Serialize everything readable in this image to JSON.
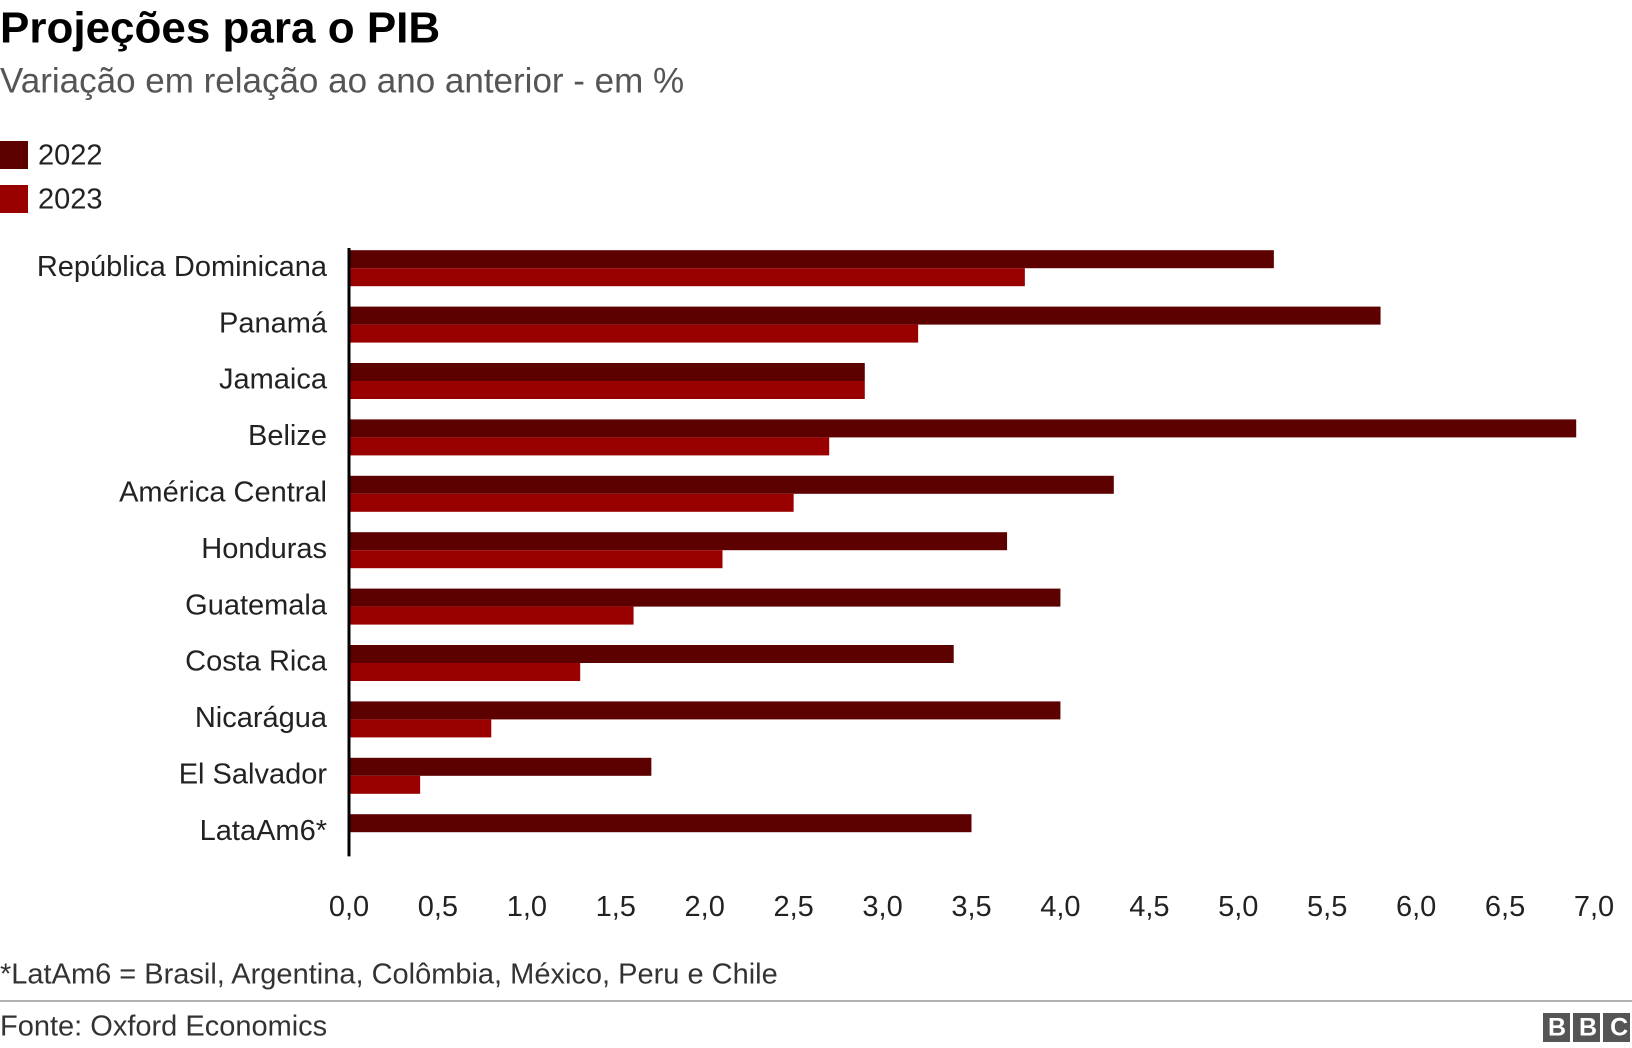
{
  "chart_data": {
    "type": "hbar",
    "title": "Projeções para o PIB",
    "subtitle": "Variação em relação ao ano anterior - em %",
    "categories": [
      "República Dominicana",
      "Panamá",
      "Jamaica",
      "Belize",
      "América Central",
      "Honduras",
      "Guatemala",
      "Costa Rica",
      "Nicarágua",
      "El Salvador",
      "LataAm6*"
    ],
    "series": [
      {
        "name": "2022",
        "color": "#5c0000",
        "values": [
          5.2,
          5.8,
          2.9,
          6.9,
          4.3,
          3.7,
          4.0,
          3.4,
          4.0,
          1.7,
          3.5
        ]
      },
      {
        "name": "2023",
        "color": "#990000",
        "values": [
          3.8,
          3.2,
          2.9,
          2.7,
          2.5,
          2.1,
          1.6,
          1.3,
          0.8,
          0.4,
          null
        ]
      }
    ],
    "xlim": [
      0,
      7
    ],
    "xticks": [
      {
        "value": 0,
        "label": "0,0"
      },
      {
        "value": 0.5,
        "label": "0,5"
      },
      {
        "value": 1,
        "label": "1,0"
      },
      {
        "value": 1.5,
        "label": "1,5"
      },
      {
        "value": 2,
        "label": "2,0"
      },
      {
        "value": 2.5,
        "label": "2,5"
      },
      {
        "value": 3,
        "label": "3,0"
      },
      {
        "value": 3.5,
        "label": "3,5"
      },
      {
        "value": 4,
        "label": "4,0"
      },
      {
        "value": 4.5,
        "label": "4,5"
      },
      {
        "value": 5,
        "label": "5,0"
      },
      {
        "value": 5.5,
        "label": "5,5"
      },
      {
        "value": 6,
        "label": "6,0"
      },
      {
        "value": 6.5,
        "label": "6,5"
      },
      {
        "value": 7,
        "label": "7,0"
      }
    ],
    "grid": false,
    "legend": "top-left",
    "footnote": "*LatAm6 = Brasil, Argentina, Colômbia, México, Peru e Chile",
    "source": "Fonte: Oxford Economics",
    "logo": "BBC"
  }
}
